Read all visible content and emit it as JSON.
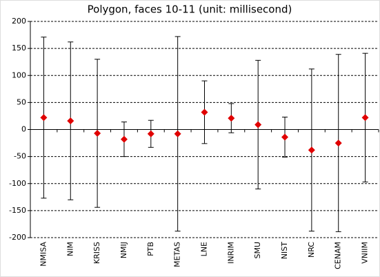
{
  "chart_data": {
    "type": "errorbar",
    "title": "Polygon, faces 10-11 (unit: millisecond)",
    "categories": [
      "NMISA",
      "NIM",
      "KRISS",
      "NMIJ",
      "PTB",
      "METAS",
      "LNE",
      "INRIM",
      "SMU",
      "NIST",
      "NRC",
      "CENAM",
      "VNIIM"
    ],
    "values": [
      22,
      16,
      -7,
      -18,
      -8,
      -8,
      32,
      21,
      9,
      -14,
      -38,
      -25,
      22
    ],
    "errors": [
      149,
      146,
      137,
      32,
      25,
      180,
      58,
      27,
      119,
      37,
      150,
      164,
      119
    ],
    "color": "#e00000",
    "ylim": [
      -200,
      200
    ],
    "yticks": [
      -200,
      -150,
      -100,
      -50,
      0,
      50,
      100,
      150,
      200
    ],
    "grid": true
  }
}
